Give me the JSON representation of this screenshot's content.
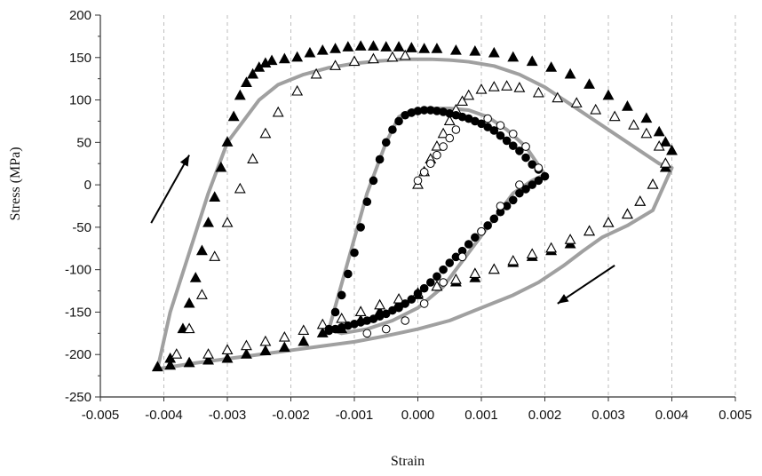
{
  "chart_data": {
    "type": "scatter",
    "title": "",
    "xlabel": "Strain",
    "ylabel": "Stress (MPa)",
    "xlim": [
      -0.005,
      0.005
    ],
    "ylim": [
      -250,
      200
    ],
    "grid": "vertical-dashed",
    "x_tick_labels": [
      "-0.005",
      "-0.004",
      "-0.003",
      "-0.002",
      "-0.001",
      "0.000",
      "0.001",
      "0.002",
      "0.003",
      "0.004",
      "0.005"
    ],
    "y_tick_labels": [
      "-250",
      "-200",
      "-150",
      "-100",
      "-50",
      "0",
      "50",
      "100",
      "150",
      "200"
    ],
    "colors": {
      "model_curve": "#a0a0a0",
      "markers": "#000000"
    },
    "series": [
      {
        "marker": "filled-triangle",
        "x": [
          -0.0041,
          -0.0039,
          -0.0037,
          -0.0036,
          -0.0035,
          -0.0034,
          -0.0033,
          -0.0032,
          -0.0031,
          -0.003,
          -0.0029,
          -0.0028,
          -0.0027,
          -0.0026,
          -0.0025,
          -0.0024,
          -0.0023,
          -0.0021,
          -0.0019,
          -0.0017,
          -0.0015,
          -0.0013,
          -0.0011,
          -0.0009,
          -0.0007,
          -0.0005,
          -0.0003,
          -0.0001,
          0.0001,
          0.0003,
          0.0006,
          0.0009,
          0.0012,
          0.0015,
          0.0018,
          0.0021,
          0.0024,
          0.0027,
          0.003,
          0.0033,
          0.0036,
          0.0038,
          0.0039,
          0.004,
          0.0039,
          0.0037,
          0.0035,
          0.0033,
          0.003,
          0.0027,
          0.0024,
          0.0021,
          0.0018,
          0.0015,
          0.0012,
          0.0009,
          0.0006,
          0.0003,
          0.0,
          -0.0003,
          -0.0006,
          -0.0009,
          -0.0012,
          -0.0015,
          -0.0018,
          -0.0021,
          -0.0024,
          -0.0027,
          -0.003,
          -0.0033,
          -0.0036,
          -0.0039
        ],
        "y": [
          -215,
          -205,
          -170,
          -140,
          -110,
          -78,
          -45,
          -15,
          20,
          50,
          80,
          105,
          120,
          130,
          138,
          143,
          146,
          148,
          150,
          155,
          158,
          160,
          162,
          163,
          163,
          162,
          162,
          161,
          160,
          160,
          158,
          157,
          155,
          150,
          145,
          138,
          130,
          118,
          105,
          92,
          78,
          62,
          50,
          40,
          20,
          0,
          -20,
          -35,
          -45,
          -55,
          -70,
          -78,
          -85,
          -92,
          -100,
          -110,
          -115,
          -120,
          -130,
          -140,
          -150,
          -160,
          -170,
          -175,
          -185,
          -192,
          -196,
          -200,
          -205,
          -207,
          -210,
          -213
        ]
      },
      {
        "marker": "open-triangle",
        "x": [
          -0.0038,
          -0.0036,
          -0.0034,
          -0.0032,
          -0.003,
          -0.0028,
          -0.0026,
          -0.0024,
          -0.0022,
          -0.0019,
          -0.0016,
          -0.0013,
          -0.001,
          -0.0007,
          -0.0004,
          -0.0002,
          0.0,
          0.0001,
          0.0002,
          0.0003,
          0.0004,
          0.0005,
          0.0006,
          0.0007,
          0.0008,
          0.001,
          0.0012,
          0.0014,
          0.0016,
          0.0019,
          0.0022,
          0.0025,
          0.0028,
          0.0031,
          0.0034,
          0.0036,
          0.0038,
          0.0039,
          0.0037,
          0.0035,
          0.0033,
          0.003,
          0.0027,
          0.0024,
          0.0021,
          0.0018,
          0.0015,
          0.0012,
          0.0009,
          0.0006,
          0.0003,
          0.0,
          -0.0003,
          -0.0006,
          -0.0009,
          -0.0012,
          -0.0015,
          -0.0018,
          -0.0021,
          -0.0024,
          -0.0027,
          -0.003,
          -0.0033
        ],
        "y": [
          -200,
          -170,
          -130,
          -85,
          -45,
          -5,
          30,
          60,
          85,
          110,
          130,
          140,
          145,
          148,
          150,
          152,
          0,
          15,
          30,
          45,
          60,
          75,
          88,
          98,
          105,
          112,
          115,
          116,
          114,
          108,
          102,
          96,
          88,
          80,
          70,
          60,
          45,
          25,
          0,
          -20,
          -35,
          -45,
          -55,
          -65,
          -75,
          -82,
          -90,
          -100,
          -105,
          -112,
          -120,
          -128,
          -135,
          -142,
          -150,
          -158,
          -165,
          -172,
          -180,
          -185,
          -190,
          -195,
          -200
        ]
      },
      {
        "marker": "filled-circle",
        "x": [
          -0.0014,
          -0.0013,
          -0.0012,
          -0.0011,
          -0.001,
          -0.0009,
          -0.0008,
          -0.0007,
          -0.0006,
          -0.0005,
          -0.0004,
          -0.0003,
          -0.0002,
          -0.0001,
          0.0,
          0.0001,
          0.0002,
          0.0003,
          0.0004,
          0.0005,
          0.0006,
          0.0007,
          0.0008,
          0.0009,
          0.001,
          0.0011,
          0.0012,
          0.0013,
          0.0014,
          0.0015,
          0.0016,
          0.0017,
          0.0018,
          0.0019,
          0.002,
          0.0019,
          0.0018,
          0.0017,
          0.0016,
          0.0015,
          0.0014,
          0.0013,
          0.0012,
          0.0011,
          0.001,
          0.0009,
          0.0008,
          0.0007,
          0.0006,
          0.0005,
          0.0004,
          0.0003,
          0.0002,
          0.0001,
          0.0,
          -0.0001,
          -0.0002,
          -0.0003,
          -0.0004,
          -0.0005,
          -0.0006,
          -0.0007,
          -0.0008,
          -0.0009,
          -0.001,
          -0.0011,
          -0.0012,
          -0.0013,
          -0.0014
        ],
        "y": [
          -170,
          -150,
          -130,
          -105,
          -80,
          -50,
          -20,
          5,
          30,
          50,
          65,
          75,
          82,
          85,
          87,
          88,
          88,
          87,
          86,
          84,
          82,
          80,
          78,
          75,
          72,
          68,
          64,
          58,
          52,
          46,
          40,
          32,
          24,
          18,
          10,
          5,
          0,
          -5,
          -10,
          -18,
          -25,
          -32,
          -40,
          -48,
          -55,
          -62,
          -70,
          -78,
          -85,
          -92,
          -100,
          -108,
          -115,
          -122,
          -128,
          -135,
          -140,
          -145,
          -148,
          -152,
          -155,
          -158,
          -160,
          -162,
          -164,
          -166,
          -168,
          -170,
          -172
        ]
      },
      {
        "marker": "open-circle",
        "x": [
          0.0,
          0.0001,
          0.0002,
          0.0003,
          0.0004,
          0.0005,
          0.0006,
          0.0011,
          0.0013,
          0.0015,
          0.0017,
          0.0019,
          0.0016,
          0.0013,
          0.001,
          0.0007,
          0.0004,
          0.0001,
          -0.0002,
          -0.0005,
          -0.0008
        ],
        "y": [
          5,
          15,
          25,
          35,
          45,
          55,
          65,
          78,
          70,
          60,
          45,
          20,
          0,
          -25,
          -55,
          -85,
          -115,
          -140,
          -160,
          -170,
          -175
        ]
      },
      {
        "marker": "model-line-gray",
        "x": [
          -0.0041,
          -0.0039,
          -0.0036,
          -0.0033,
          -0.003,
          -0.0027,
          -0.0025,
          -0.0022,
          -0.0018,
          -0.0014,
          -0.001,
          -0.0006,
          -0.0002,
          0.0002,
          0.0005,
          0.0008,
          0.0012,
          0.0016,
          0.002,
          0.0024,
          0.0028,
          0.0032,
          0.0036,
          0.0038,
          0.004,
          0.0037,
          0.0033,
          0.0029,
          0.0026,
          0.0023,
          0.0019,
          0.0015,
          0.001,
          0.0005,
          0.0,
          -0.0005,
          -0.001,
          -0.0015,
          -0.002,
          -0.0025,
          -0.003,
          -0.0035,
          -0.0041
        ],
        "y": [
          -217,
          -150,
          -80,
          -10,
          50,
          80,
          100,
          118,
          130,
          138,
          143,
          146,
          148,
          148,
          147,
          145,
          140,
          130,
          115,
          95,
          75,
          55,
          35,
          25,
          20,
          -30,
          -48,
          -62,
          -78,
          -95,
          -115,
          -130,
          -145,
          -160,
          -170,
          -178,
          -185,
          -190,
          -195,
          -200,
          -205,
          -210,
          -217
        ]
      },
      {
        "marker": "model-line-gray",
        "x": [
          -0.0014,
          -0.0011,
          -0.0008,
          -0.0005,
          -0.0003,
          -0.0001,
          0.0002,
          0.0005,
          0.0008,
          0.0011,
          0.0014,
          0.0017,
          0.002,
          0.0018,
          0.0015,
          0.0012,
          0.0008,
          0.0004,
          0.0,
          -0.0004,
          -0.0008,
          -0.0012,
          -0.0014
        ],
        "y": [
          -170,
          -90,
          -10,
          50,
          80,
          88,
          90,
          90,
          88,
          80,
          65,
          45,
          12,
          5,
          -10,
          -40,
          -80,
          -120,
          -145,
          -160,
          -170,
          -175,
          -170
        ]
      }
    ],
    "annotations": [
      {
        "type": "arrow",
        "direction": "up-right",
        "from": [
          -0.0042,
          -45
        ],
        "to": [
          -0.0036,
          35
        ]
      },
      {
        "type": "arrow",
        "direction": "down-left",
        "from": [
          0.0031,
          -95
        ],
        "to": [
          0.0022,
          -140
        ]
      }
    ]
  }
}
